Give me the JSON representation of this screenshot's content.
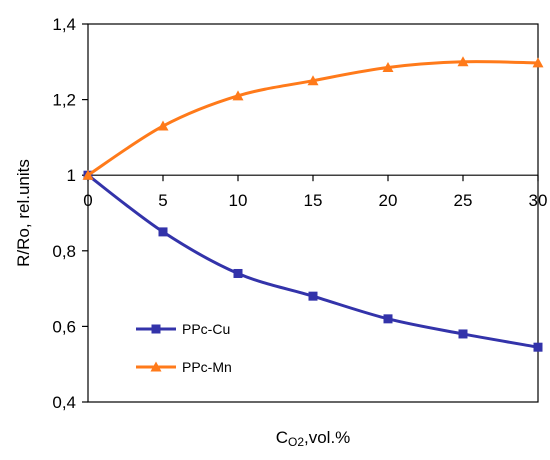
{
  "chart_data": {
    "type": "line",
    "title": "",
    "xlabel": "C",
    "xlabel_sub": "O2",
    "xlabel_suffix": ",vol.%",
    "ylabel": "R/Ro, rel.units",
    "x": [
      0,
      5,
      10,
      15,
      20,
      25,
      30
    ],
    "x_tick_labels": [
      "0",
      "5",
      "10",
      "15",
      "20",
      "25",
      "30"
    ],
    "xlim": [
      0,
      30
    ],
    "ylim": [
      0.4,
      1.4
    ],
    "y_ticks": [
      0.4,
      0.6,
      0.8,
      1.0,
      1.2,
      1.4
    ],
    "y_tick_labels": [
      "0,4",
      "0,6",
      "0,8",
      "1",
      "1,2",
      "1,4"
    ],
    "grid": false,
    "legend_position": "lower-left",
    "series": [
      {
        "name": "PPc-Cu",
        "color": "#3333aa",
        "marker": "square",
        "values": [
          1.0,
          0.85,
          0.74,
          0.68,
          0.62,
          0.58,
          0.545
        ]
      },
      {
        "name": "PPc-Mn",
        "color": "#ff7a1a",
        "marker": "triangle",
        "values": [
          1.0,
          1.13,
          1.21,
          1.25,
          1.285,
          1.3,
          1.297
        ]
      }
    ]
  }
}
